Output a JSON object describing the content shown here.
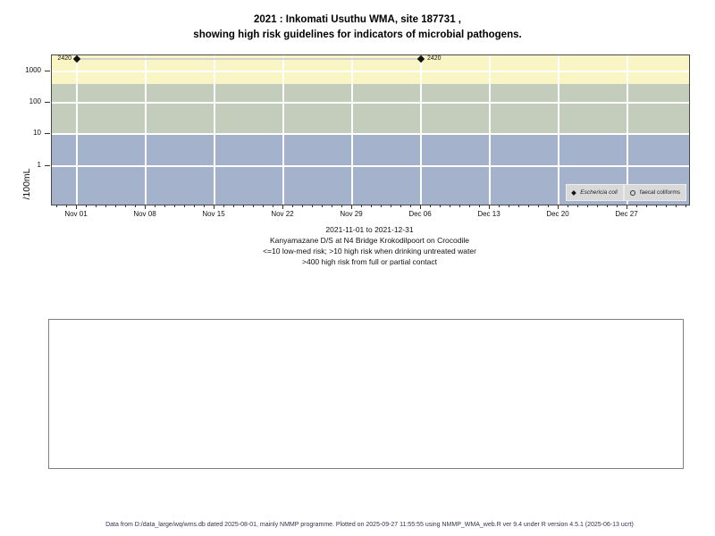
{
  "title": {
    "line1": "2021 : Inkomati Usuthu WMA, site 187731 ,",
    "line2": "showing high risk guidelines for indicators of microbial pathogens."
  },
  "chart_data": {
    "type": "scatter",
    "x_axis": {
      "tick_labels": [
        "Nov 01",
        "Nov 08",
        "Nov 15",
        "Nov 22",
        "Nov 29",
        "Dec 06",
        "Dec 13",
        "Dec 20",
        "Dec 27"
      ],
      "tick_day_offsets": [
        0,
        7,
        14,
        21,
        28,
        35,
        42,
        49,
        56
      ],
      "minor_tick_unit": "day",
      "range": [
        "2021-11-01",
        "2021-12-31"
      ]
    },
    "y_axis": {
      "label": "/100mL",
      "scale": "log10",
      "tick_values": [
        1000,
        100,
        10,
        1
      ],
      "tick_labels": [
        "1000",
        "100",
        "10",
        "1"
      ]
    },
    "series": [
      {
        "name": "Eschericia coli",
        "symbol": "filled-diamond",
        "points": [
          {
            "date": "2021-11-01",
            "day_offset": 0,
            "value": 2420,
            "label": "2420",
            "label_side": "left"
          },
          {
            "date": "2021-12-06",
            "day_offset": 35,
            "value": 2420,
            "label": "2420",
            "label_side": "right"
          }
        ]
      },
      {
        "name": "faecal coliforms",
        "symbol": "open-circle",
        "points": []
      }
    ],
    "risk_bands": [
      {
        "name": "high risk from full or partial contact",
        "from": 400,
        "to": "top",
        "color": "#faf5c5"
      },
      {
        "name": "high risk when drinking untreated water",
        "from": 10,
        "to": 400,
        "color": "#c4ccbc"
      },
      {
        "name": "low-med risk",
        "from": "bottom",
        "to": 10,
        "color": "#a4b3cb"
      }
    ],
    "legend": {
      "position": "bottom-right",
      "entries": [
        {
          "symbol": "filled-diamond",
          "label": "Eschericia coli",
          "italic": true
        },
        {
          "symbol": "open-circle",
          "label": "faecal coliforms",
          "italic": false
        }
      ]
    },
    "line_color": "#d3d3d3",
    "point_color": "#111111"
  },
  "caption": {
    "lines": [
      "2021-11-01 to 2021-12-31",
      "Kanyamazane D/S at N4 Bridge Krokodilpoort on Crocodile",
      "<=10 low-med risk; >10 high risk when drinking untreated water",
      ">400 high risk from full or partial contact"
    ]
  },
  "footer": {
    "text": "Data from D:/data_large/wq/wms.db dated 2025-08-01, mainly NMMP programme. Plotted on 2025-09-27 11:55:55 using NMMP_WMA_web.R ver 9.4 under R version 4.5.1 (2025-06-13 ucrt)"
  }
}
